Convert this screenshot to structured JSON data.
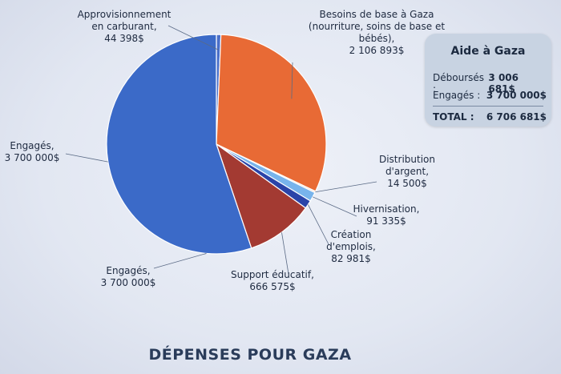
{
  "chart_data": {
    "type": "pie",
    "title": "DÉPENSES POUR GAZA",
    "slices": [
      {
        "name": "Approvisionnement en carburant",
        "value": 44398,
        "color": "#4a6fc9",
        "label_lines": [
          "Approvisionnement",
          "en carburant,",
          "44 398$"
        ]
      },
      {
        "name": "Besoins de base à Gaza (nourriture, soins de base et bébés)",
        "value": 2106893,
        "color": "#e86a35",
        "label_lines": [
          "Besoins de base à Gaza",
          "(nourriture, soins de base et",
          "bébés),",
          "2 106 893$"
        ]
      },
      {
        "name": "Distribution d'argent",
        "value": 14500,
        "color": "#f2d6c4",
        "label_lines": [
          "Distribution",
          "d'argent,",
          "14 500$"
        ]
      },
      {
        "name": "Hivernisation",
        "value": 91335,
        "color": "#78b4ec",
        "label_lines": [
          "Hivernisation,",
          "91 335$"
        ]
      },
      {
        "name": "Création d'emplois",
        "value": 82981,
        "color": "#2b44a8",
        "label_lines": [
          "Création",
          "d'emplois,",
          "82 981$"
        ]
      },
      {
        "name": "Support éducatif",
        "value": 666575,
        "color": "#a33a32",
        "label_lines": [
          "Support éducatif,",
          "666 575$"
        ]
      },
      {
        "name": "Engagés",
        "value": 3700000,
        "color": "#3b6ac8",
        "label_lines": [
          "Engagés,",
          "3 700 000$"
        ]
      }
    ],
    "extra_label_lines": [
      "Engagés,",
      "3 700 000$"
    ]
  },
  "summary": {
    "title": "Aide à Gaza",
    "rows": [
      {
        "label": "Déboursés :",
        "value": "3 006 681$"
      },
      {
        "label": "Engagés :",
        "value": "3 700 000$"
      }
    ],
    "total": {
      "label": "TOTAL :",
      "value": "6 706 681$"
    }
  }
}
